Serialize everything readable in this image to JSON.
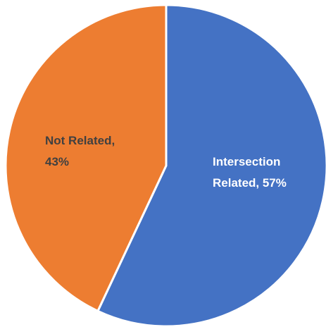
{
  "chart_data": {
    "type": "pie",
    "title": "",
    "start_angle_deg": 0,
    "direction": "clockwise",
    "slices": [
      {
        "label": "Intersection Related",
        "value": 57,
        "display": [
          "Intersection",
          "Related, 57%"
        ],
        "color": "#4472C4",
        "label_color": "#ffffff"
      },
      {
        "label": "Not Related",
        "value": 43,
        "display": [
          "Not Related,",
          "43%"
        ],
        "color": "#ED7D31",
        "label_color": "#404040"
      }
    ],
    "border_color": "#ffffff",
    "legend": "none"
  }
}
